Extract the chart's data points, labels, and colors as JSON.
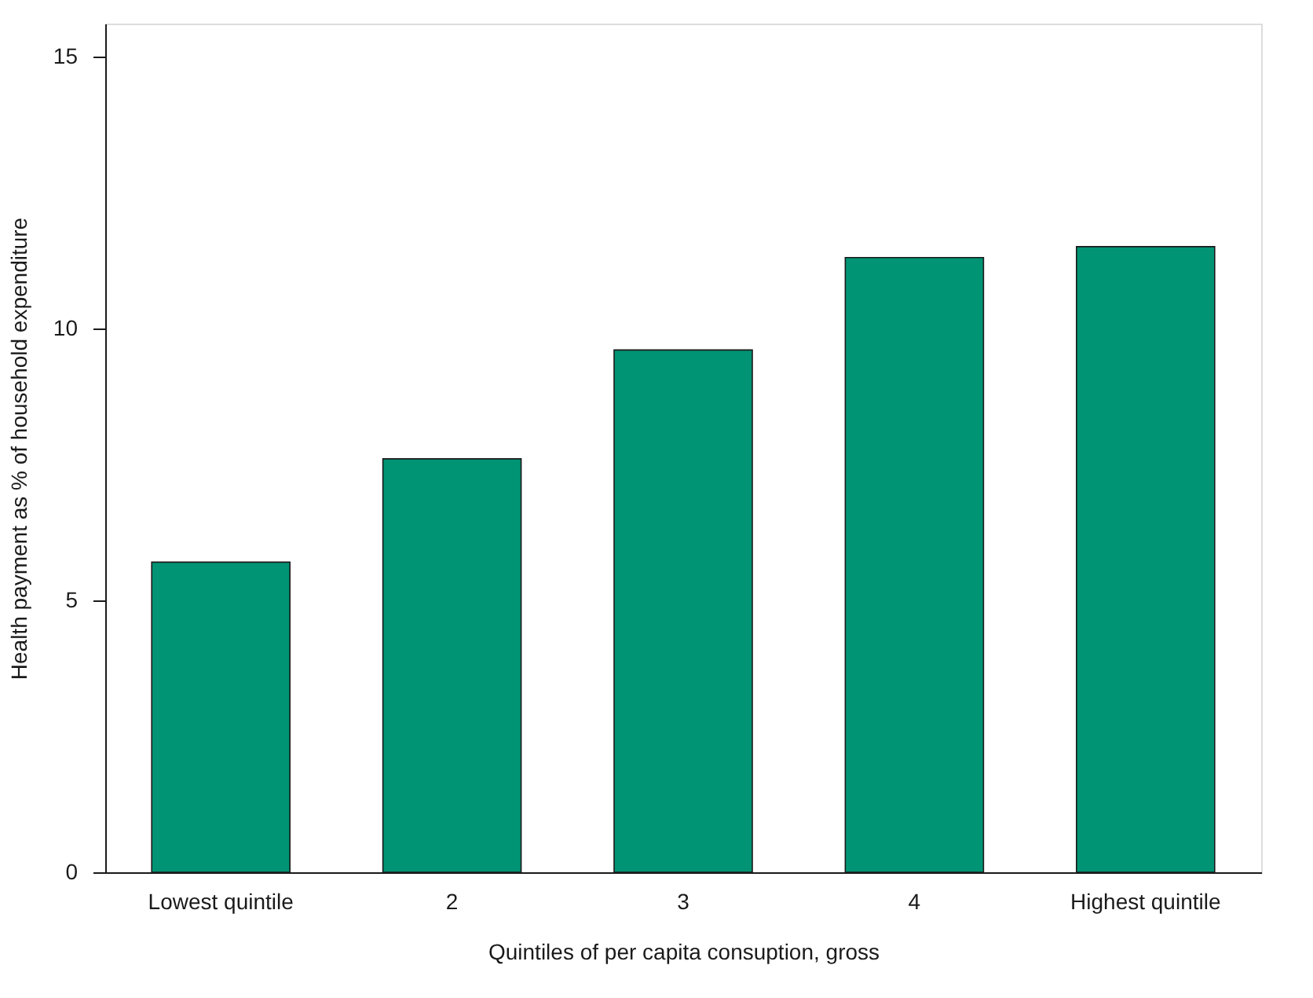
{
  "chart_data": {
    "type": "bar",
    "xlabel": "Quintiles of per capita consuption, gross",
    "ylabel": "Health payment as % of household expenditure",
    "categories": [
      "Lowest quintile",
      "2",
      "3",
      "4",
      "Highest quintile"
    ],
    "values": [
      5.7,
      7.6,
      9.6,
      11.3,
      11.5
    ],
    "color": "#009474",
    "ylim": [
      0,
      15.6
    ],
    "yticks": [
      0,
      5,
      10,
      15
    ],
    "grid": false
  }
}
